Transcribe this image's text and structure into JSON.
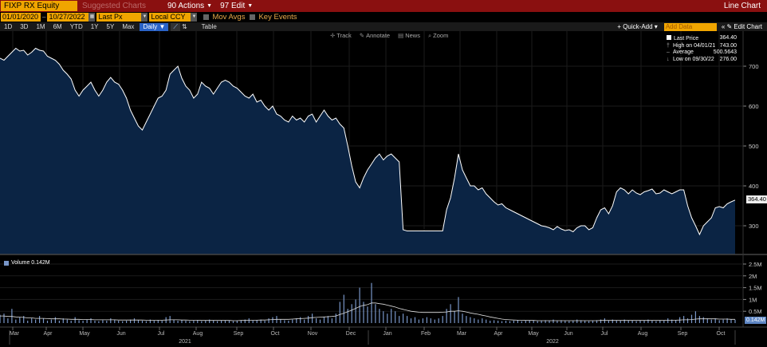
{
  "topbar": {
    "ticker": "FIXP RX Equity",
    "suggested": "Suggested Charts",
    "actions": "90 Actions",
    "edit": "97 Edit",
    "title": "Line Chart"
  },
  "controls": {
    "start_date": "01/01/2020",
    "end_date": "10/27/2022",
    "field": "Last Px",
    "currency": "Local CCY",
    "mov_avgs": "Mov Avgs",
    "key_events": "Key Events"
  },
  "periods": [
    "1D",
    "3D",
    "1M",
    "6M",
    "YTD",
    "1Y",
    "5Y",
    "Max"
  ],
  "frequency": "Daily",
  "table_label": "Table",
  "quick_add": "Quick-Add",
  "add_data_placeholder": "Add Data",
  "edit_chart": "Edit Chart",
  "tools": [
    "Track",
    "Annotate",
    "News",
    "Zoom"
  ],
  "legend": {
    "last_price_label": "Last Price",
    "last_price_value": "364.40",
    "high_label": "High on 04/01/21",
    "high_value": "743.00",
    "average_label": "Average",
    "average_value": "500.5643",
    "low_label": "Low on 09/30/22",
    "low_value": "276.00"
  },
  "price_tag": "364.40",
  "volume_legend": "Volume 0.142M",
  "volume_tag": "0.142M",
  "colors": {
    "topbar": "#8a1010",
    "accent": "#f0a500",
    "area_fill": "#0b2444",
    "line": "#ffffff",
    "volume": "#7896c8"
  },
  "chart_data": {
    "type": "area",
    "price_axis": {
      "ticks": [
        700,
        600,
        500,
        400,
        300
      ]
    },
    "volume_axis": {
      "ticks": [
        "2.5M",
        "2M",
        "1.5M",
        "1M",
        "0.5M"
      ]
    },
    "months": [
      "Mar",
      "Apr",
      "May",
      "Jun",
      "Jul",
      "Aug",
      "Sep",
      "Oct",
      "Nov",
      "Dec",
      "Jan",
      "Feb",
      "Mar",
      "Apr",
      "May",
      "Jun",
      "Jul",
      "Aug",
      "Sep",
      "Oct"
    ],
    "years": [
      "2021",
      "2022"
    ],
    "price_series": [
      720,
      715,
      725,
      735,
      745,
      738,
      740,
      728,
      735,
      745,
      740,
      738,
      725,
      720,
      715,
      705,
      690,
      680,
      668,
      640,
      625,
      640,
      650,
      660,
      640,
      625,
      640,
      660,
      672,
      660,
      655,
      640,
      620,
      590,
      570,
      550,
      540,
      560,
      580,
      600,
      620,
      625,
      640,
      680,
      690,
      700,
      670,
      650,
      640,
      620,
      630,
      660,
      650,
      645,
      630,
      645,
      660,
      665,
      660,
      650,
      645,
      635,
      625,
      620,
      630,
      610,
      615,
      600,
      590,
      600,
      580,
      575,
      565,
      560,
      575,
      565,
      570,
      560,
      575,
      580,
      560,
      575,
      590,
      575,
      565,
      570,
      555,
      545,
      500,
      450,
      410,
      395,
      420,
      440,
      455,
      470,
      480,
      465,
      475,
      480,
      470,
      460,
      290,
      287,
      287,
      287,
      287,
      287,
      287,
      287,
      287,
      287,
      287,
      340,
      370,
      420,
      480,
      440,
      420,
      400,
      400,
      390,
      395,
      380,
      370,
      360,
      352,
      355,
      345,
      340,
      335,
      330,
      325,
      320,
      315,
      310,
      305,
      300,
      298,
      295,
      290,
      298,
      292,
      288,
      290,
      285,
      295,
      300,
      300,
      290,
      295,
      320,
      340,
      345,
      330,
      350,
      385,
      395,
      390,
      380,
      390,
      382,
      378,
      385,
      388,
      392,
      380,
      382,
      390,
      385,
      380,
      385,
      390,
      390,
      350,
      320,
      300,
      278,
      300,
      310,
      320,
      345,
      348,
      345,
      355,
      360,
      364.4
    ],
    "volume_series": [
      0.35,
      0.4,
      0.2,
      0.6,
      0.15,
      0.25,
      0.3,
      0.1,
      0.2,
      0.15,
      0.3,
      0.2,
      0.1,
      0.15,
      0.25,
      0.1,
      0.2,
      0.15,
      0.1,
      0.25,
      0.12,
      0.1,
      0.15,
      0.2,
      0.1,
      0.08,
      0.12,
      0.1,
      0.2,
      0.15,
      0.1,
      0.08,
      0.1,
      0.15,
      0.2,
      0.12,
      0.1,
      0.08,
      0.15,
      0.1,
      0.12,
      0.1,
      0.25,
      0.3,
      0.15,
      0.1,
      0.12,
      0.1,
      0.08,
      0.1,
      0.12,
      0.08,
      0.1,
      0.15,
      0.1,
      0.08,
      0.1,
      0.12,
      0.1,
      0.08,
      0.1,
      0.12,
      0.15,
      0.2,
      0.1,
      0.12,
      0.15,
      0.1,
      0.2,
      0.25,
      0.3,
      0.15,
      0.12,
      0.1,
      0.15,
      0.2,
      0.25,
      0.15,
      0.3,
      0.4,
      0.2,
      0.15,
      0.25,
      0.3,
      0.2,
      0.4,
      0.9,
      1.2,
      0.6,
      0.8,
      1.0,
      1.5,
      0.9,
      0.7,
      1.7,
      0.8,
      0.6,
      0.5,
      0.4,
      0.6,
      0.5,
      0.3,
      0.4,
      0.3,
      0.2,
      0.25,
      0.15,
      0.2,
      0.25,
      0.2,
      0.15,
      0.2,
      0.3,
      0.6,
      0.8,
      0.5,
      1.1,
      0.4,
      0.3,
      0.25,
      0.2,
      0.15,
      0.2,
      0.15,
      0.1,
      0.12,
      0.1,
      0.08,
      0.1,
      0.08,
      0.1,
      0.12,
      0.08,
      0.1,
      0.12,
      0.1,
      0.08,
      0.1,
      0.12,
      0.1,
      0.15,
      0.1,
      0.12,
      0.1,
      0.08,
      0.1,
      0.15,
      0.12,
      0.1,
      0.08,
      0.1,
      0.12,
      0.15,
      0.2,
      0.1,
      0.15,
      0.12,
      0.1,
      0.15,
      0.12,
      0.1,
      0.08,
      0.12,
      0.1,
      0.15,
      0.1,
      0.08,
      0.12,
      0.1,
      0.2,
      0.15,
      0.12,
      0.25,
      0.3,
      0.2,
      0.35,
      0.5,
      0.3,
      0.25,
      0.2,
      0.15,
      0.2,
      0.12,
      0.15,
      0.2,
      0.15,
      0.142
    ],
    "volume_ma_series": [
      0.3,
      0.3,
      0.28,
      0.28,
      0.26,
      0.25,
      0.24,
      0.22,
      0.22,
      0.2,
      0.2,
      0.2,
      0.19,
      0.18,
      0.18,
      0.18,
      0.17,
      0.17,
      0.16,
      0.16,
      0.16,
      0.15,
      0.15,
      0.15,
      0.14,
      0.14,
      0.14,
      0.14,
      0.14,
      0.14,
      0.13,
      0.13,
      0.13,
      0.13,
      0.13,
      0.13,
      0.13,
      0.12,
      0.12,
      0.12,
      0.12,
      0.12,
      0.13,
      0.14,
      0.14,
      0.14,
      0.13,
      0.13,
      0.12,
      0.12,
      0.12,
      0.11,
      0.11,
      0.11,
      0.11,
      0.11,
      0.11,
      0.11,
      0.11,
      0.1,
      0.1,
      0.11,
      0.11,
      0.12,
      0.12,
      0.12,
      0.13,
      0.13,
      0.14,
      0.15,
      0.16,
      0.16,
      0.16,
      0.16,
      0.17,
      0.18,
      0.19,
      0.2,
      0.21,
      0.23,
      0.24,
      0.25,
      0.26,
      0.27,
      0.28,
      0.3,
      0.36,
      0.42,
      0.48,
      0.55,
      0.62,
      0.7,
      0.75,
      0.78,
      0.85,
      0.85,
      0.82,
      0.8,
      0.76,
      0.72,
      0.68,
      0.62,
      0.58,
      0.54,
      0.5,
      0.48,
      0.46,
      0.45,
      0.45,
      0.45,
      0.45,
      0.45,
      0.46,
      0.47,
      0.5,
      0.5,
      0.52,
      0.5,
      0.47,
      0.43,
      0.4,
      0.37,
      0.33,
      0.3,
      0.26,
      0.23,
      0.2,
      0.17,
      0.15,
      0.14,
      0.13,
      0.12,
      0.12,
      0.11,
      0.11,
      0.11,
      0.1,
      0.1,
      0.1,
      0.1,
      0.1,
      0.1,
      0.1,
      0.1,
      0.1,
      0.1,
      0.1,
      0.1,
      0.1,
      0.1,
      0.1,
      0.1,
      0.11,
      0.11,
      0.11,
      0.11,
      0.11,
      0.11,
      0.11,
      0.11,
      0.11,
      0.11,
      0.11,
      0.11,
      0.11,
      0.11,
      0.11,
      0.11,
      0.11,
      0.12,
      0.12,
      0.12,
      0.13,
      0.14,
      0.14,
      0.15,
      0.17,
      0.18,
      0.18,
      0.18,
      0.18,
      0.18,
      0.17,
      0.17,
      0.17,
      0.16,
      0.16
    ]
  }
}
